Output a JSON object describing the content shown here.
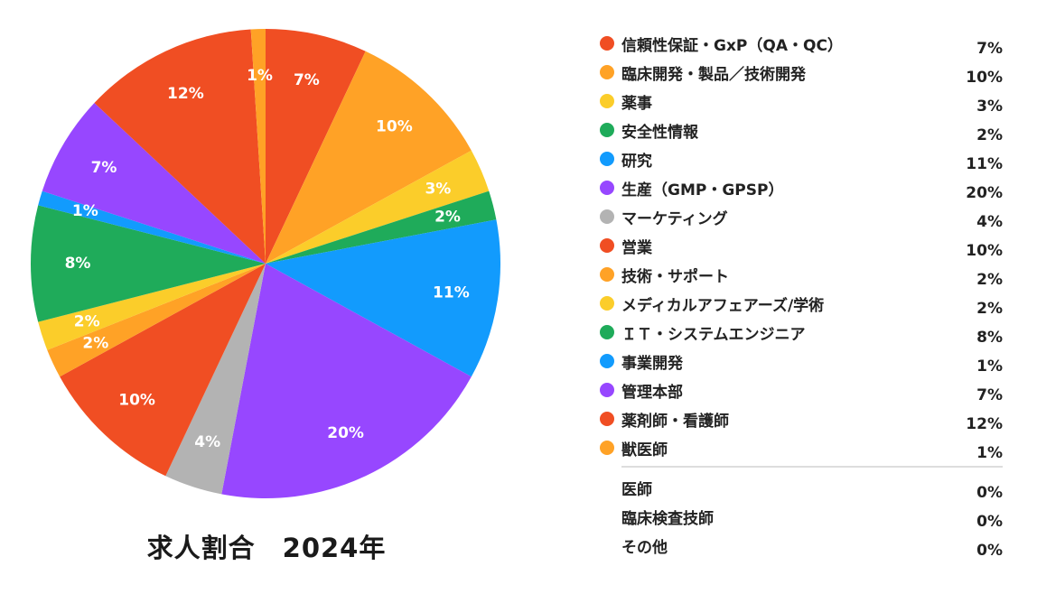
{
  "chart_data": {
    "type": "pie",
    "title": "求人割合　2024年",
    "slices": [
      {
        "label": "信頼性保証・GxP（QA・QC）",
        "value": 7,
        "display": "7%",
        "color": "#f04e23"
      },
      {
        "label": "臨床開発・製品／技術開発",
        "value": 10,
        "display": "10%",
        "color": "#ffa226"
      },
      {
        "label": "薬事",
        "value": 3,
        "display": "3%",
        "color": "#fbcd2a"
      },
      {
        "label": "安全性情報",
        "value": 2,
        "display": "2%",
        "color": "#1fab5a"
      },
      {
        "label": "研究",
        "value": 11,
        "display": "11%",
        "color": "#129bfd"
      },
      {
        "label": "生産（GMP・GPSP）",
        "value": 20,
        "display": "20%",
        "color": "#9747ff"
      },
      {
        "label": "マーケティング",
        "value": 4,
        "display": "4%",
        "color": "#b3b3b3"
      },
      {
        "label": "営業",
        "value": 10,
        "display": "10%",
        "color": "#f04e23"
      },
      {
        "label": "技術・サポート",
        "value": 2,
        "display": "2%",
        "color": "#ffa226"
      },
      {
        "label": "メディカルアフェアーズ/学術",
        "value": 2,
        "display": "2%",
        "color": "#fbcd2a"
      },
      {
        "label": "ＩＴ・システムエンジニア",
        "value": 8,
        "display": "8%",
        "color": "#1fab5a"
      },
      {
        "label": "事業開発",
        "value": 1,
        "display": "1%",
        "color": "#129bfd"
      },
      {
        "label": "管理本部",
        "value": 7,
        "display": "7%",
        "color": "#9747ff"
      },
      {
        "label": "薬剤師・看護師",
        "value": 12,
        "display": "12%",
        "color": "#f04e23"
      },
      {
        "label": "獣医師",
        "value": 1,
        "display": "1%",
        "color": "#ffa226"
      }
    ],
    "zero_items": [
      {
        "label": "医師",
        "value": 0,
        "display": "0%"
      },
      {
        "label": "臨床検査技師",
        "value": 0,
        "display": "0%"
      },
      {
        "label": "その他",
        "value": 0,
        "display": "0%"
      }
    ],
    "legend_position": "right",
    "label_color": "#ffffff"
  }
}
